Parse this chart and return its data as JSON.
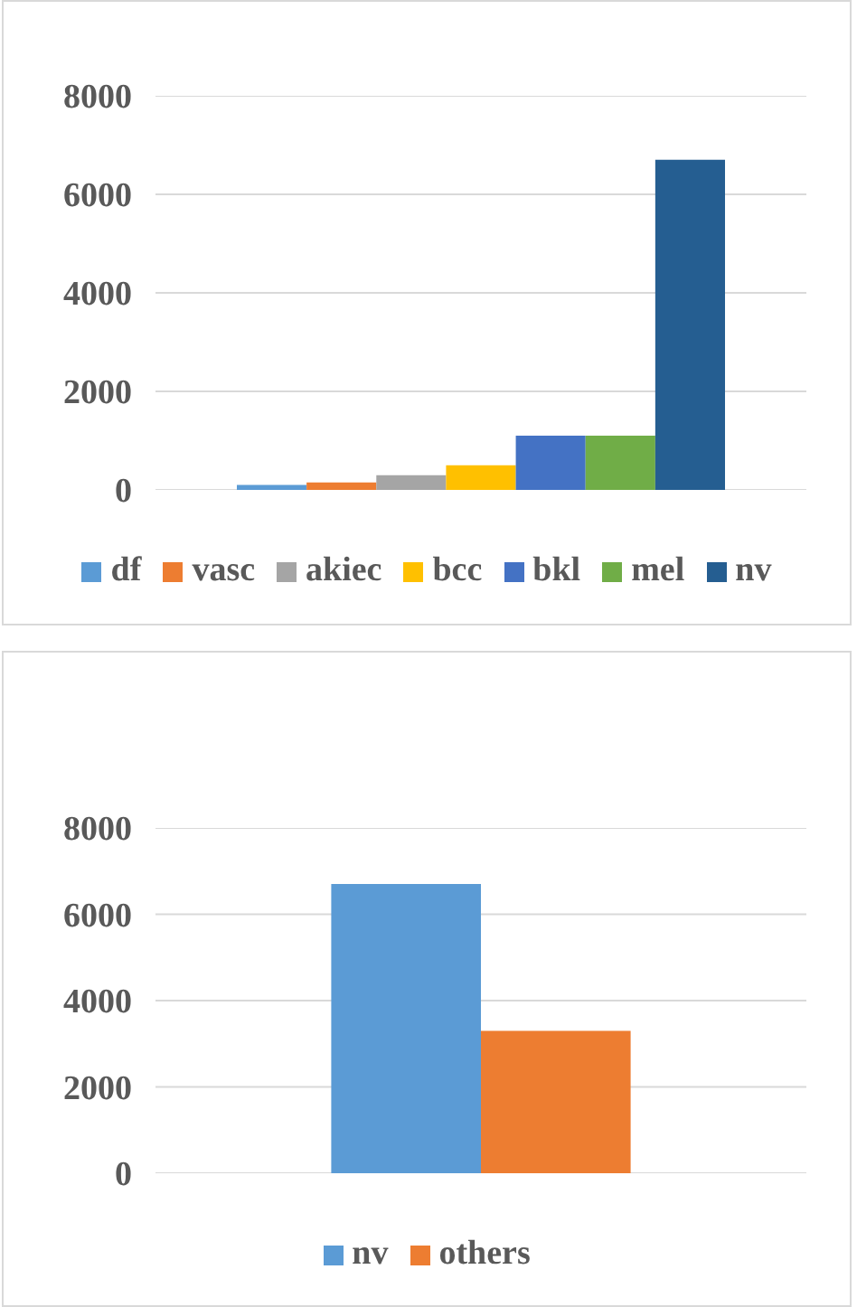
{
  "chart_data": [
    {
      "type": "bar",
      "categories": [
        null
      ],
      "series": [
        {
          "name": "df",
          "color": "#5b9bd5",
          "values": [
            100
          ]
        },
        {
          "name": "vasc",
          "color": "#ed7d31",
          "values": [
            150
          ]
        },
        {
          "name": "akiec",
          "color": "#a5a5a5",
          "values": [
            300
          ]
        },
        {
          "name": "bcc",
          "color": "#ffc000",
          "values": [
            500
          ]
        },
        {
          "name": "bkl",
          "color": "#4472c4",
          "values": [
            1100
          ]
        },
        {
          "name": "mel",
          "color": "#70ad47",
          "values": [
            1100
          ]
        },
        {
          "name": "nv",
          "color": "#255e91",
          "values": [
            6700
          ]
        }
      ],
      "ylim": [
        0,
        8000
      ],
      "yticks": [
        0,
        2000,
        4000,
        6000,
        8000
      ],
      "grid": "y",
      "legend": "bottom",
      "tick_labels": "y"
    },
    {
      "type": "bar",
      "categories": [
        null
      ],
      "series": [
        {
          "name": "nv",
          "color": "#5b9bd5",
          "values": [
            6700
          ]
        },
        {
          "name": "others",
          "color": "#ed7d31",
          "values": [
            3300
          ]
        }
      ],
      "ylim": [
        0,
        8000
      ],
      "yticks": [
        0,
        2000,
        4000,
        6000,
        8000
      ],
      "grid": "y",
      "legend": "bottom",
      "tick_labels": "y"
    }
  ]
}
